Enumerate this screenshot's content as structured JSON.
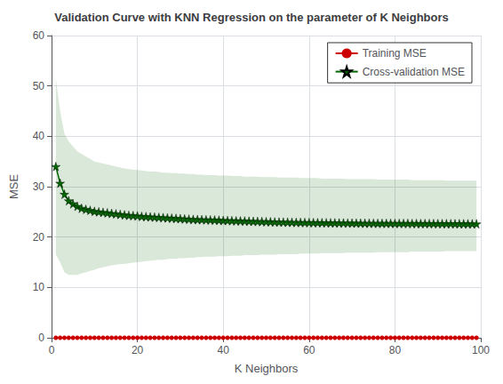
{
  "chart_data": {
    "type": "line",
    "title": "Validation Curve with KNN Regression on the parameter of K Neighbors",
    "xlabel": "K Neighbors",
    "ylabel": "MSE",
    "xlim": [
      0,
      100
    ],
    "ylim": [
      0,
      60
    ],
    "xticks": [
      0,
      20,
      40,
      60,
      80,
      100
    ],
    "yticks": [
      0,
      10,
      20,
      30,
      40,
      50,
      60
    ],
    "grid": true,
    "legend": "upper right",
    "x": [
      1,
      2,
      3,
      4,
      5,
      6,
      7,
      8,
      9,
      10,
      11,
      12,
      13,
      14,
      15,
      16,
      17,
      18,
      19,
      20,
      21,
      22,
      23,
      24,
      25,
      26,
      27,
      28,
      29,
      30,
      31,
      32,
      33,
      34,
      35,
      36,
      37,
      38,
      39,
      40,
      41,
      42,
      43,
      44,
      45,
      46,
      47,
      48,
      49,
      50,
      51,
      52,
      53,
      54,
      55,
      56,
      57,
      58,
      59,
      60,
      61,
      62,
      63,
      64,
      65,
      66,
      67,
      68,
      69,
      70,
      71,
      72,
      73,
      74,
      75,
      76,
      77,
      78,
      79,
      80,
      81,
      82,
      83,
      84,
      85,
      86,
      87,
      88,
      89,
      90,
      91,
      92,
      93,
      94,
      95,
      96,
      97,
      98,
      99
    ],
    "series": [
      {
        "name": "Training MSE",
        "color": "#cc0000",
        "marker": "circle",
        "values": [
          0.0,
          0.0,
          0.0,
          0.0,
          0.0,
          0.0,
          0.0,
          0.0,
          0.0,
          0.0,
          0.0,
          0.0,
          0.0,
          0.0,
          0.0,
          0.0,
          0.0,
          0.0,
          0.0,
          0.0,
          0.0,
          0.0,
          0.0,
          0.0,
          0.0,
          0.0,
          0.0,
          0.0,
          0.0,
          0.0,
          0.0,
          0.0,
          0.0,
          0.0,
          0.0,
          0.0,
          0.0,
          0.0,
          0.0,
          0.0,
          0.0,
          0.0,
          0.0,
          0.0,
          0.0,
          0.0,
          0.0,
          0.0,
          0.0,
          0.0,
          0.0,
          0.0,
          0.0,
          0.0,
          0.0,
          0.0,
          0.0,
          0.0,
          0.0,
          0.0,
          0.0,
          0.0,
          0.0,
          0.0,
          0.0,
          0.0,
          0.0,
          0.0,
          0.0,
          0.0,
          0.0,
          0.0,
          0.0,
          0.0,
          0.0,
          0.0,
          0.0,
          0.0,
          0.0,
          0.0,
          0.0,
          0.0,
          0.0,
          0.0,
          0.0,
          0.0,
          0.0,
          0.0,
          0.0,
          0.0,
          0.0,
          0.0,
          0.0,
          0.0,
          0.0,
          0.0,
          0.0,
          0.0,
          0.0
        ]
      },
      {
        "name": "Cross-validation MSE",
        "color": "#006400",
        "marker": "star",
        "values": [
          34.0,
          30.7,
          28.5,
          27.2,
          26.6,
          26.1,
          25.7,
          25.5,
          25.3,
          25.1,
          25.0,
          24.9,
          24.8,
          24.7,
          24.6,
          24.5,
          24.4,
          24.3,
          24.25,
          24.2,
          24.1,
          24.05,
          24.0,
          23.95,
          23.9,
          23.85,
          23.8,
          23.75,
          23.7,
          23.65,
          23.6,
          23.55,
          23.5,
          23.48,
          23.45,
          23.42,
          23.4,
          23.38,
          23.35,
          23.3,
          23.28,
          23.25,
          23.22,
          23.2,
          23.18,
          23.15,
          23.12,
          23.1,
          23.08,
          23.05,
          23.03,
          23.0,
          22.98,
          22.96,
          22.95,
          22.93,
          22.91,
          22.9,
          22.88,
          22.87,
          22.86,
          22.85,
          22.84,
          22.83,
          22.82,
          22.81,
          22.8,
          22.79,
          22.78,
          22.77,
          22.76,
          22.75,
          22.75,
          22.74,
          22.74,
          22.73,
          22.73,
          22.72,
          22.72,
          22.71,
          22.71,
          22.7,
          22.7,
          22.69,
          22.69,
          22.68,
          22.68,
          22.67,
          22.67,
          22.66,
          22.66,
          22.65,
          22.65,
          22.64,
          22.64,
          22.63,
          22.63,
          22.62,
          22.62
        ],
        "upper": [
          51.5,
          45.0,
          40.5,
          39.0,
          38.0,
          37.0,
          36.5,
          36.0,
          35.5,
          35.0,
          34.8,
          34.6,
          34.4,
          34.2,
          34.0,
          33.8,
          33.6,
          33.5,
          33.4,
          33.3,
          33.2,
          33.1,
          33.0,
          33.0,
          32.9,
          32.8,
          32.8,
          32.7,
          32.7,
          32.6,
          32.6,
          32.5,
          32.5,
          32.4,
          32.4,
          32.3,
          32.3,
          32.3,
          32.2,
          32.2,
          32.2,
          32.1,
          32.1,
          32.1,
          32.0,
          32.0,
          32.0,
          32.0,
          31.9,
          31.9,
          31.9,
          31.9,
          31.8,
          31.8,
          31.8,
          31.8,
          31.8,
          31.7,
          31.7,
          31.7,
          31.7,
          31.7,
          31.6,
          31.6,
          31.6,
          31.6,
          31.6,
          31.6,
          31.5,
          31.5,
          31.5,
          31.5,
          31.5,
          31.5,
          31.5,
          31.4,
          31.4,
          31.4,
          31.4,
          31.4,
          31.4,
          31.4,
          31.4,
          31.3,
          31.3,
          31.3,
          31.3,
          31.3,
          31.3,
          31.3,
          31.3,
          31.2,
          31.2,
          31.2,
          31.2,
          31.2,
          31.2,
          31.2,
          31.2
        ],
        "lower": [
          16.5,
          15.0,
          13.0,
          12.5,
          12.5,
          12.5,
          12.8,
          13.0,
          13.3,
          13.5,
          13.8,
          14.0,
          14.2,
          14.4,
          14.5,
          14.6,
          14.7,
          14.8,
          14.9,
          15.0,
          15.1,
          15.2,
          15.3,
          15.4,
          15.5,
          15.5,
          15.6,
          15.7,
          15.7,
          15.8,
          15.8,
          15.9,
          15.9,
          16.0,
          16.0,
          16.1,
          16.1,
          16.1,
          16.2,
          16.2,
          16.2,
          16.3,
          16.3,
          16.3,
          16.4,
          16.4,
          16.4,
          16.4,
          16.5,
          16.5,
          16.5,
          16.5,
          16.6,
          16.6,
          16.6,
          16.6,
          16.6,
          16.7,
          16.7,
          16.7,
          16.7,
          16.7,
          16.8,
          16.8,
          16.8,
          16.8,
          16.8,
          16.8,
          16.9,
          16.9,
          16.9,
          16.9,
          16.9,
          16.9,
          16.9,
          17.0,
          17.0,
          17.0,
          17.0,
          17.0,
          17.0,
          17.0,
          17.0,
          17.1,
          17.1,
          17.1,
          17.1,
          17.1,
          17.1,
          17.1,
          17.1,
          17.2,
          17.2,
          17.2,
          17.2,
          17.2,
          17.2,
          17.2,
          17.2
        ]
      }
    ]
  }
}
